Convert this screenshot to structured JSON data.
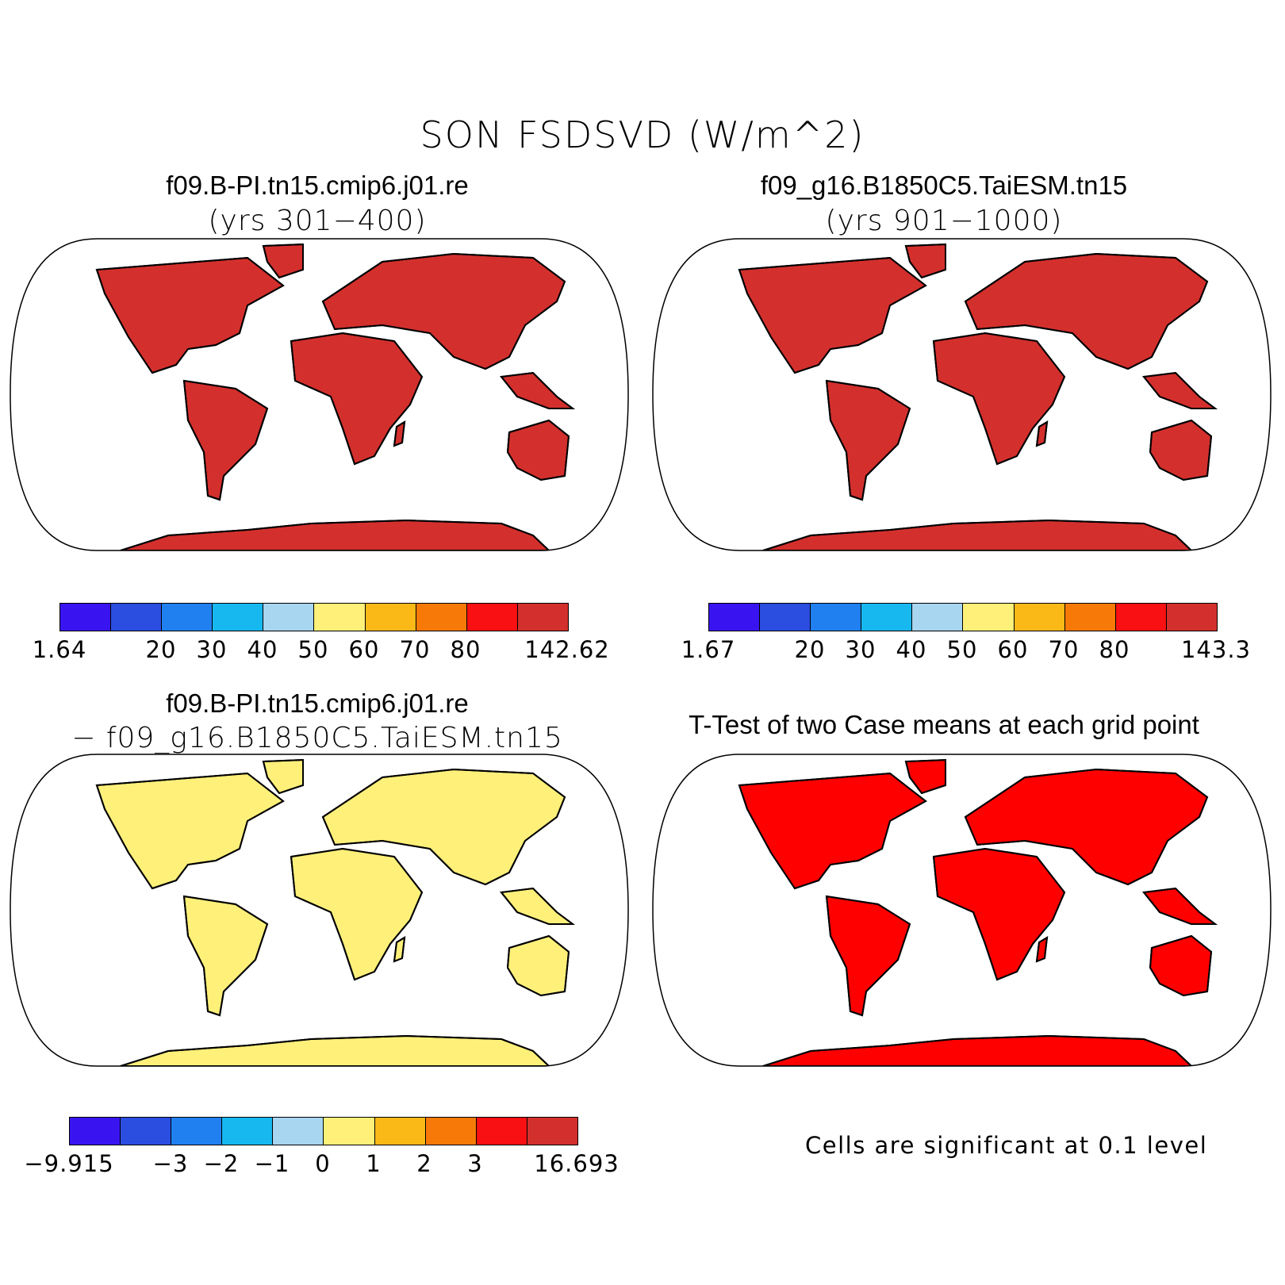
{
  "title": "SON FSDSVD (W/m^2)",
  "panels": {
    "p1": {
      "title": "f09.B-PI.tn15.cmip6.j01.re",
      "subtitle": "(yrs 301−400)"
    },
    "p2": {
      "title": "f09_g16.B1850C5.TaiESM.tn15",
      "subtitle": "(yrs 901−1000)"
    },
    "p3": {
      "title": "f09.B-PI.tn15.cmip6.j01.re",
      "subtitle": "− f09_g16.B1850C5.TaiESM.tn15"
    },
    "p4": {
      "title": "T-Test of two Case means at each grid point",
      "note": "Cells are significant at 0.1 level"
    }
  },
  "colorbars": {
    "colors": [
      "#3a14f0",
      "#2b4de0",
      "#2080f0",
      "#17b8f0",
      "#a8d5f0",
      "#fff07a",
      "#fbb918",
      "#f77a08",
      "#f81012",
      "#d3302d"
    ],
    "cb1_labels": [
      "1.64",
      "20",
      "30",
      "40",
      "50",
      "60",
      "70",
      "80",
      "142.62"
    ],
    "cb2_labels": [
      "1.67",
      "20",
      "30",
      "40",
      "50",
      "60",
      "70",
      "80",
      "143.3"
    ],
    "cb3_labels": [
      "−9.915",
      "−3",
      "−2",
      "−1",
      "0",
      "1",
      "2",
      "3",
      "16.693"
    ]
  },
  "colors": {
    "significant": "#ff0000",
    "outline": "#000000"
  }
}
